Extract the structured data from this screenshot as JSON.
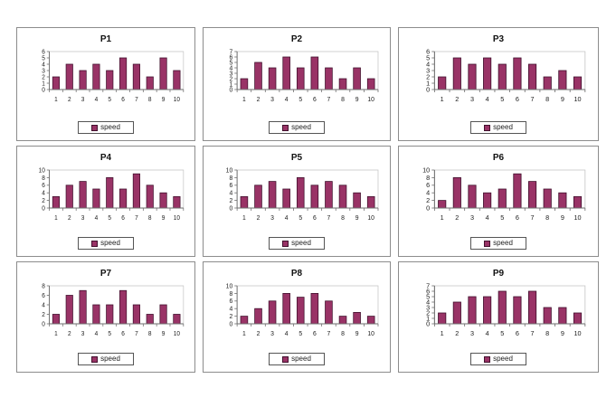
{
  "page": {
    "background": "#ffffff"
  },
  "colors": {
    "bar_fill": "#993366",
    "bar_border": "#42112e",
    "axis": "#6e6e6e",
    "plot_border": "#c6c6c6",
    "text": "#1a1a1a",
    "panel_border": "#8c8c8c"
  },
  "legend_label": "speed",
  "chart_data": [
    {
      "type": "bar",
      "title": "P1",
      "legend": "speed",
      "legend_position": "bottom",
      "grid": false,
      "categories": [
        "1",
        "2",
        "3",
        "4",
        "5",
        "6",
        "7",
        "8",
        "9",
        "10"
      ],
      "values": [
        2,
        4,
        3,
        4,
        3,
        5,
        4,
        2,
        5,
        3
      ],
      "ylim": [
        0,
        6
      ],
      "ytick_step": 1,
      "xlabel": "",
      "ylabel": ""
    },
    {
      "type": "bar",
      "title": "P2",
      "legend": "speed",
      "legend_position": "bottom",
      "grid": false,
      "categories": [
        "1",
        "2",
        "3",
        "4",
        "5",
        "6",
        "7",
        "8",
        "9",
        "10"
      ],
      "values": [
        2,
        5,
        4,
        6,
        4,
        6,
        4,
        2,
        4,
        2
      ],
      "ylim": [
        0,
        7
      ],
      "ytick_step": 1,
      "xlabel": "",
      "ylabel": ""
    },
    {
      "type": "bar",
      "title": "P3",
      "legend": "speed",
      "legend_position": "bottom",
      "grid": false,
      "categories": [
        "1",
        "2",
        "3",
        "4",
        "5",
        "6",
        "7",
        "8",
        "9",
        "10"
      ],
      "values": [
        2,
        5,
        4,
        5,
        4,
        5,
        4,
        2,
        3,
        2
      ],
      "ylim": [
        0,
        6
      ],
      "ytick_step": 1,
      "xlabel": "",
      "ylabel": ""
    },
    {
      "type": "bar",
      "title": "P4",
      "legend": "speed",
      "legend_position": "bottom",
      "grid": false,
      "categories": [
        "1",
        "2",
        "3",
        "4",
        "5",
        "6",
        "7",
        "8",
        "9",
        "10"
      ],
      "values": [
        3,
        6,
        7,
        5,
        8,
        5,
        9,
        6,
        4,
        3
      ],
      "ylim": [
        0,
        10
      ],
      "ytick_step": 2,
      "xlabel": "",
      "ylabel": ""
    },
    {
      "type": "bar",
      "title": "P5",
      "legend": "speed",
      "legend_position": "bottom",
      "grid": false,
      "categories": [
        "1",
        "2",
        "3",
        "4",
        "5",
        "6",
        "7",
        "8",
        "9",
        "10"
      ],
      "values": [
        3,
        6,
        7,
        5,
        8,
        6,
        7,
        6,
        4,
        3
      ],
      "ylim": [
        0,
        10
      ],
      "ytick_step": 2,
      "xlabel": "",
      "ylabel": ""
    },
    {
      "type": "bar",
      "title": "P6",
      "legend": "speed",
      "legend_position": "bottom",
      "grid": false,
      "categories": [
        "1",
        "2",
        "3",
        "4",
        "5",
        "6",
        "7",
        "8",
        "9",
        "10"
      ],
      "values": [
        2,
        8,
        6,
        4,
        5,
        9,
        7,
        5,
        4,
        3
      ],
      "ylim": [
        0,
        10
      ],
      "ytick_step": 2,
      "xlabel": "",
      "ylabel": ""
    },
    {
      "type": "bar",
      "title": "P7",
      "legend": "speed",
      "legend_position": "bottom",
      "grid": false,
      "categories": [
        "1",
        "2",
        "3",
        "4",
        "5",
        "6",
        "7",
        "8",
        "9",
        "10"
      ],
      "values": [
        2,
        6,
        7,
        4,
        4,
        7,
        4,
        2,
        4,
        2
      ],
      "ylim": [
        0,
        8
      ],
      "ytick_step": 2,
      "xlabel": "",
      "ylabel": ""
    },
    {
      "type": "bar",
      "title": "P8",
      "legend": "speed",
      "legend_position": "bottom",
      "grid": false,
      "categories": [
        "1",
        "2",
        "3",
        "4",
        "5",
        "6",
        "7",
        "8",
        "9",
        "10"
      ],
      "values": [
        2,
        4,
        6,
        8,
        7,
        8,
        6,
        2,
        3,
        2
      ],
      "ylim": [
        0,
        10
      ],
      "ytick_step": 2,
      "xlabel": "",
      "ylabel": ""
    },
    {
      "type": "bar",
      "title": "P9",
      "legend": "speed",
      "legend_position": "bottom",
      "grid": false,
      "categories": [
        "1",
        "2",
        "3",
        "4",
        "5",
        "6",
        "7",
        "8",
        "9",
        "10"
      ],
      "values": [
        2,
        4,
        5,
        5,
        6,
        5,
        6,
        3,
        3,
        2
      ],
      "ylim": [
        0,
        7
      ],
      "ytick_step": 1,
      "xlabel": "",
      "ylabel": ""
    }
  ]
}
